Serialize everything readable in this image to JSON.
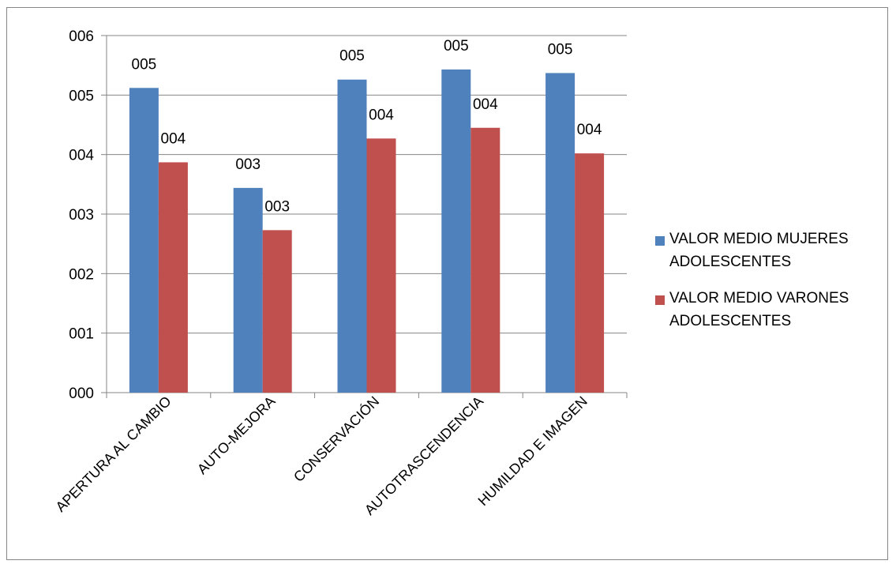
{
  "chart_data": {
    "type": "bar",
    "title": "",
    "xlabel": "",
    "ylabel": "",
    "categories": [
      "APERTURA AL CAMBIO",
      "AUTO-MEJORA",
      "CONSERVACIÓN",
      "AUTOTRASCENDENCIA",
      "HUMILDAD E IMAGEN"
    ],
    "series": [
      {
        "name": "VALOR MEDIO MUJERES ADOLESCENTES",
        "color": "#4F81BD",
        "values": [
          5.12,
          3.44,
          5.26,
          5.43,
          5.37
        ],
        "labels": [
          "005",
          "003",
          "005",
          "005",
          "005"
        ]
      },
      {
        "name": "VALOR MEDIO VARONES ADOLESCENTES",
        "color": "#C0504D",
        "values": [
          3.87,
          2.73,
          4.27,
          4.45,
          4.02
        ],
        "labels": [
          "004",
          "003",
          "004",
          "004",
          "004"
        ]
      }
    ],
    "ylim": [
      0,
      6
    ],
    "yticks": [
      0,
      1,
      2,
      3,
      4,
      5,
      6
    ],
    "ytick_labels": [
      "000",
      "001",
      "002",
      "003",
      "004",
      "005",
      "006"
    ],
    "grid": true,
    "legend_position": "right",
    "colors": {
      "gridline": "#868686",
      "axis": "#868686",
      "border": "#868686"
    }
  }
}
